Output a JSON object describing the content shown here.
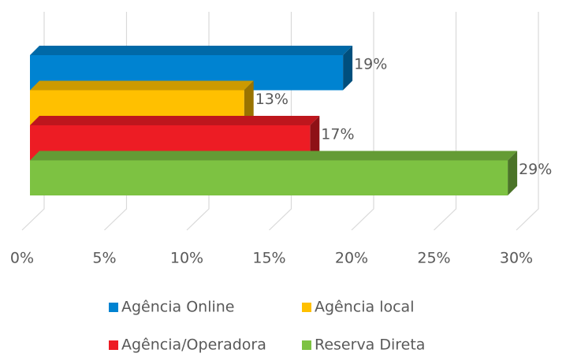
{
  "chart_data": {
    "type": "bar3d",
    "orientation": "horizontal",
    "categories": [
      null
    ],
    "series": [
      {
        "name": "Agência Online",
        "color": "#0083d1",
        "values": [
          19
        ],
        "value_labels": [
          "19%"
        ]
      },
      {
        "name": "Agência local",
        "color": "#ffc000",
        "values": [
          13
        ],
        "value_labels": [
          "13%"
        ]
      },
      {
        "name": "Agência/Operadora",
        "color": "#ed1c24",
        "values": [
          17
        ],
        "value_labels": [
          "17%"
        ]
      },
      {
        "name": "Reserva Direta",
        "color": "#7dc242",
        "values": [
          29
        ],
        "value_labels": [
          "29%"
        ]
      }
    ],
    "xlim": [
      0,
      30
    ],
    "xticks": [
      {
        "value": 0,
        "label": "0%"
      },
      {
        "value": 5,
        "label": "5%"
      },
      {
        "value": 10,
        "label": "10%"
      },
      {
        "value": 15,
        "label": "15%"
      },
      {
        "value": 20,
        "label": "20%"
      },
      {
        "value": 25,
        "label": "25%"
      },
      {
        "value": 30,
        "label": "30%"
      }
    ],
    "grid": true,
    "legend": "bottom"
  }
}
